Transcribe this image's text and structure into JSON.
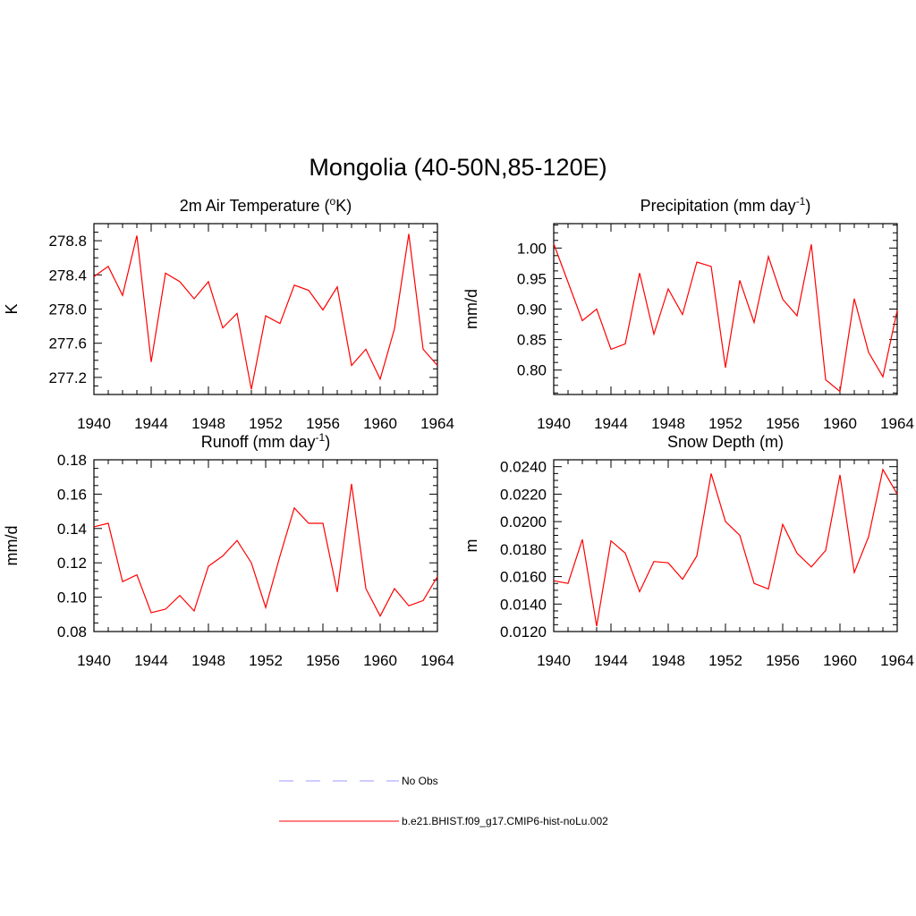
{
  "figure": {
    "title": "Mongolia (40-50N,85-120E)"
  },
  "legend": {
    "items": [
      {
        "label": "No Obs",
        "color": "#9999ff",
        "style": "dashed"
      },
      {
        "label": "b.e21.BHIST.f09_g17.CMIP6-hist-noLu.002",
        "color": "#ff0000",
        "style": "solid"
      }
    ]
  },
  "chart_data": [
    {
      "type": "line",
      "title": "2m Air Temperature (°K)",
      "title_parts": [
        "2m Air Temperature (",
        "o",
        "K)"
      ],
      "ylabel": "K",
      "xlim": [
        1940,
        1964
      ],
      "ylim": [
        277.0,
        279.0
      ],
      "xticks": [
        "1940",
        "1944",
        "1948",
        "1952",
        "1956",
        "1960",
        "1964"
      ],
      "yticks": [
        "277.2",
        "277.6",
        "278.0",
        "278.4",
        "278.8"
      ],
      "yticks_values": [
        277.2,
        277.6,
        278.0,
        278.4,
        278.8
      ],
      "x": [
        1940,
        1941,
        1942,
        1943,
        1944,
        1945,
        1946,
        1947,
        1948,
        1949,
        1950,
        1951,
        1952,
        1953,
        1954,
        1955,
        1956,
        1957,
        1958,
        1959,
        1960,
        1961,
        1962,
        1963,
        1964
      ],
      "series": [
        {
          "name": "b.e21.BHIST.f09_g17.CMIP6-hist-noLu.002",
          "color": "#ff0000",
          "values": [
            278.38,
            278.5,
            278.16,
            278.86,
            277.38,
            278.42,
            278.32,
            278.12,
            278.32,
            277.78,
            277.95,
            277.06,
            277.92,
            277.83,
            278.28,
            278.22,
            277.99,
            278.26,
            277.34,
            277.53,
            277.18,
            277.77,
            278.88,
            277.53,
            277.34
          ]
        }
      ]
    },
    {
      "type": "line",
      "title": "Precipitation (mm day-1)",
      "title_parts": [
        "Precipitation (mm day",
        "-1",
        ")"
      ],
      "ylabel": "mm/d",
      "xlim": [
        1940,
        1964
      ],
      "ylim": [
        0.76,
        1.04
      ],
      "xticks": [
        "1940",
        "1944",
        "1948",
        "1952",
        "1956",
        "1960",
        "1964"
      ],
      "yticks": [
        "0.80",
        "0.85",
        "0.90",
        "0.95",
        "1.00"
      ],
      "yticks_values": [
        0.8,
        0.85,
        0.9,
        0.95,
        1.0
      ],
      "x": [
        1940,
        1941,
        1942,
        1943,
        1944,
        1945,
        1946,
        1947,
        1948,
        1949,
        1950,
        1951,
        1952,
        1953,
        1954,
        1955,
        1956,
        1957,
        1958,
        1959,
        1960,
        1961,
        1962,
        1963,
        1964
      ],
      "series": [
        {
          "name": "b.e21.BHIST.f09_g17.CMIP6-hist-noLu.002",
          "color": "#ff0000",
          "values": [
            1.007,
            0.944,
            0.881,
            0.9,
            0.834,
            0.843,
            0.959,
            0.859,
            0.933,
            0.891,
            0.977,
            0.97,
            0.804,
            0.947,
            0.878,
            0.986,
            0.916,
            0.889,
            1.006,
            0.784,
            0.765,
            0.917,
            0.829,
            0.789,
            0.898
          ]
        }
      ]
    },
    {
      "type": "line",
      "title": "Runoff (mm day-1)",
      "title_parts": [
        "Runoff (mm day",
        "-1",
        ")"
      ],
      "ylabel": "mm/d",
      "xlim": [
        1940,
        1964
      ],
      "ylim": [
        0.08,
        0.18
      ],
      "xticks": [
        "1940",
        "1944",
        "1948",
        "1952",
        "1956",
        "1960",
        "1964"
      ],
      "yticks": [
        "0.08",
        "0.10",
        "0.12",
        "0.14",
        "0.16",
        "0.18"
      ],
      "yticks_values": [
        0.08,
        0.1,
        0.12,
        0.14,
        0.16,
        0.18
      ],
      "x": [
        1940,
        1941,
        1942,
        1943,
        1944,
        1945,
        1946,
        1947,
        1948,
        1949,
        1950,
        1951,
        1952,
        1953,
        1954,
        1955,
        1956,
        1957,
        1958,
        1959,
        1960,
        1961,
        1962,
        1963,
        1964
      ],
      "series": [
        {
          "name": "b.e21.BHIST.f09_g17.CMIP6-hist-noLu.002",
          "color": "#ff0000",
          "values": [
            0.141,
            0.143,
            0.109,
            0.113,
            0.091,
            0.093,
            0.101,
            0.092,
            0.118,
            0.124,
            0.133,
            0.12,
            0.094,
            0.124,
            0.152,
            0.143,
            0.143,
            0.103,
            0.166,
            0.105,
            0.089,
            0.105,
            0.095,
            0.098,
            0.112
          ]
        }
      ]
    },
    {
      "type": "line",
      "title": "Snow Depth (m)",
      "title_parts": [
        "Snow Depth (m)",
        "",
        ""
      ],
      "ylabel": "m",
      "xlim": [
        1940,
        1964
      ],
      "ylim": [
        0.012,
        0.0245
      ],
      "xticks": [
        "1940",
        "1944",
        "1948",
        "1952",
        "1956",
        "1960",
        "1964"
      ],
      "yticks": [
        "0.0120",
        "0.0140",
        "0.0160",
        "0.0180",
        "0.0200",
        "0.0220",
        "0.0240"
      ],
      "yticks_values": [
        0.012,
        0.014,
        0.016,
        0.018,
        0.02,
        0.022,
        0.024
      ],
      "x": [
        1940,
        1941,
        1942,
        1943,
        1944,
        1945,
        1946,
        1947,
        1948,
        1949,
        1950,
        1951,
        1952,
        1953,
        1954,
        1955,
        1956,
        1957,
        1958,
        1959,
        1960,
        1961,
        1962,
        1963,
        1964
      ],
      "series": [
        {
          "name": "b.e21.BHIST.f09_g17.CMIP6-hist-noLu.002",
          "color": "#ff0000",
          "values": [
            0.0157,
            0.0155,
            0.0187,
            0.0124,
            0.0186,
            0.0177,
            0.0149,
            0.0171,
            0.017,
            0.0158,
            0.0175,
            0.0235,
            0.02,
            0.019,
            0.0155,
            0.0151,
            0.0198,
            0.0177,
            0.0167,
            0.0179,
            0.0234,
            0.0163,
            0.0189,
            0.0238,
            0.022
          ]
        }
      ]
    }
  ]
}
